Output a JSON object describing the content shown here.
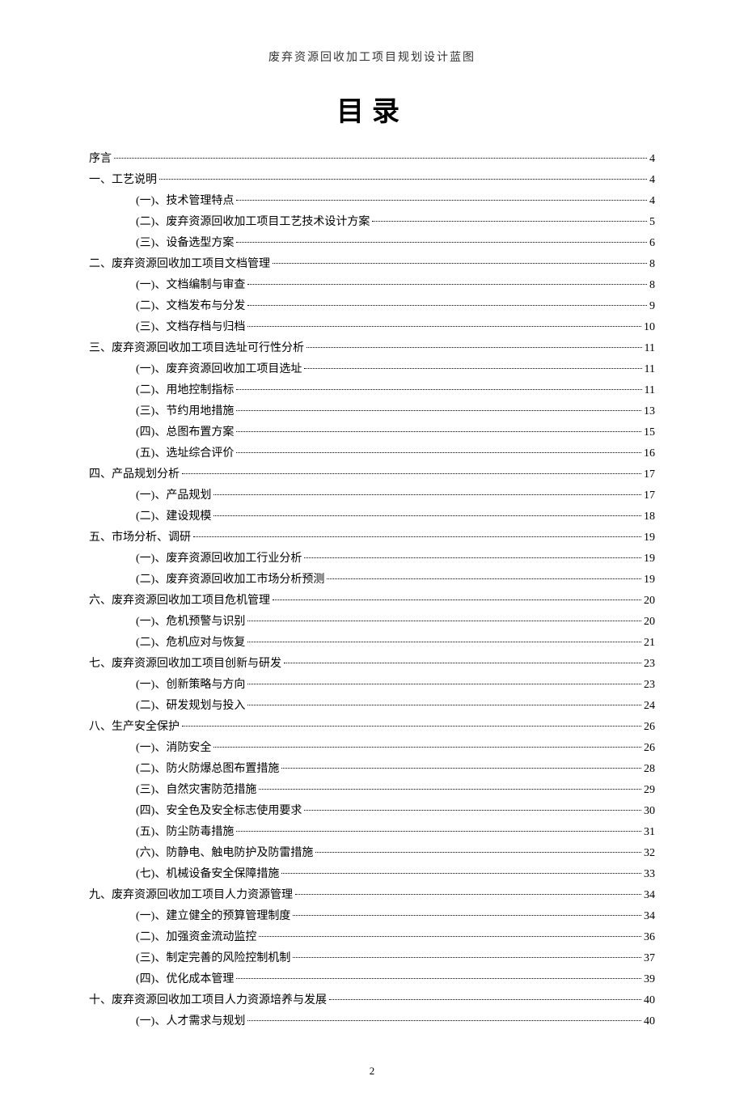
{
  "header": "废弃资源回收加工项目规划设计蓝图",
  "title": "目录",
  "pageNumber": "2",
  "entries": [
    {
      "level": 0,
      "label": "序言",
      "page": "4"
    },
    {
      "level": 0,
      "label": "一、工艺说明",
      "page": "4"
    },
    {
      "level": 1,
      "label": "(一)、技术管理特点",
      "page": "4"
    },
    {
      "level": 1,
      "label": "(二)、废弃资源回收加工项目工艺技术设计方案",
      "page": "5"
    },
    {
      "level": 1,
      "label": "(三)、设备选型方案",
      "page": "6"
    },
    {
      "level": 0,
      "label": "二、废弃资源回收加工项目文档管理",
      "page": "8"
    },
    {
      "level": 1,
      "label": "(一)、文档编制与审查",
      "page": "8"
    },
    {
      "level": 1,
      "label": "(二)、文档发布与分发",
      "page": "9"
    },
    {
      "level": 1,
      "label": "(三)、文档存档与归档",
      "page": "10"
    },
    {
      "level": 0,
      "label": "三、废弃资源回收加工项目选址可行性分析",
      "page": "11"
    },
    {
      "level": 1,
      "label": "(一)、废弃资源回收加工项目选址",
      "page": "11"
    },
    {
      "level": 1,
      "label": "(二)、用地控制指标",
      "page": "11"
    },
    {
      "level": 1,
      "label": "(三)、节约用地措施",
      "page": "13"
    },
    {
      "level": 1,
      "label": "(四)、总图布置方案",
      "page": "15"
    },
    {
      "level": 1,
      "label": "(五)、选址综合评价",
      "page": "16"
    },
    {
      "level": 0,
      "label": "四、产品规划分析",
      "page": "17"
    },
    {
      "level": 1,
      "label": "(一)、产品规划",
      "page": "17"
    },
    {
      "level": 1,
      "label": "(二)、建设规模",
      "page": "18"
    },
    {
      "level": 0,
      "label": "五、市场分析、调研",
      "page": "19"
    },
    {
      "level": 1,
      "label": "(一)、废弃资源回收加工行业分析",
      "page": "19"
    },
    {
      "level": 1,
      "label": "(二)、废弃资源回收加工市场分析预测",
      "page": "19"
    },
    {
      "level": 0,
      "label": "六、废弃资源回收加工项目危机管理",
      "page": "20"
    },
    {
      "level": 1,
      "label": "(一)、危机预警与识别",
      "page": "20"
    },
    {
      "level": 1,
      "label": "(二)、危机应对与恢复",
      "page": "21"
    },
    {
      "level": 0,
      "label": "七、废弃资源回收加工项目创新与研发",
      "page": "23"
    },
    {
      "level": 1,
      "label": "(一)、创新策略与方向",
      "page": "23"
    },
    {
      "level": 1,
      "label": "(二)、研发规划与投入",
      "page": "24"
    },
    {
      "level": 0,
      "label": "八、生产安全保护",
      "page": "26"
    },
    {
      "level": 1,
      "label": "(一)、消防安全",
      "page": "26"
    },
    {
      "level": 1,
      "label": "(二)、防火防爆总图布置措施",
      "page": "28"
    },
    {
      "level": 1,
      "label": "(三)、自然灾害防范措施",
      "page": "29"
    },
    {
      "level": 1,
      "label": "(四)、安全色及安全标志使用要求",
      "page": "30"
    },
    {
      "level": 1,
      "label": "(五)、防尘防毒措施",
      "page": "31"
    },
    {
      "level": 1,
      "label": "(六)、防静电、触电防护及防雷措施",
      "page": "32"
    },
    {
      "level": 1,
      "label": "(七)、机械设备安全保障措施",
      "page": "33"
    },
    {
      "level": 0,
      "label": "九、废弃资源回收加工项目人力资源管理",
      "page": "34"
    },
    {
      "level": 1,
      "label": "(一)、建立健全的预算管理制度",
      "page": "34"
    },
    {
      "level": 1,
      "label": "(二)、加强资金流动监控",
      "page": "36"
    },
    {
      "level": 1,
      "label": "(三)、制定完善的风险控制机制",
      "page": "37"
    },
    {
      "level": 1,
      "label": "(四)、优化成本管理",
      "page": "39"
    },
    {
      "level": 0,
      "label": "十、废弃资源回收加工项目人力资源培养与发展",
      "page": "40"
    },
    {
      "level": 1,
      "label": "(一)、人才需求与规划",
      "page": "40"
    }
  ]
}
